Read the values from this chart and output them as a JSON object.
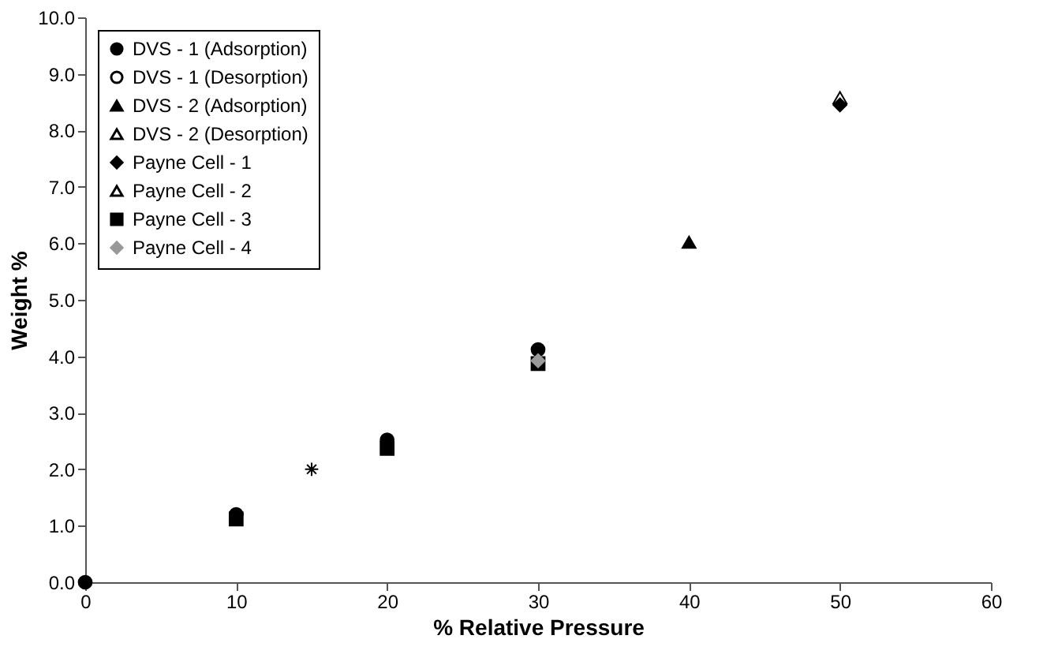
{
  "chart_data": {
    "type": "scatter",
    "xlabel": "% Relative Pressure",
    "ylabel": "Weight %",
    "xlim": [
      0,
      60
    ],
    "xticks": [
      0,
      10,
      20,
      30,
      40,
      50,
      60
    ],
    "ylim": [
      0,
      10
    ],
    "yticks": [
      {
        "value": 0,
        "label": "0.0"
      },
      {
        "value": 1,
        "label": "1.0"
      },
      {
        "value": 2,
        "label": "2.0"
      },
      {
        "value": 3,
        "label": "3.0"
      },
      {
        "value": 4,
        "label": "4.0"
      },
      {
        "value": 5,
        "label": "5.0"
      },
      {
        "value": 6,
        "label": "6.0"
      },
      {
        "value": 7,
        "label": "7.0"
      },
      {
        "value": 8,
        "label": "8.0"
      },
      {
        "value": 9,
        "label": "9.0"
      },
      {
        "value": 10,
        "label": "10.0"
      }
    ],
    "grid": false,
    "legend": "top left",
    "series": [
      {
        "name": "DVS - 1 (Adsorption)",
        "color": "#000000",
        "marker": "circle",
        "x": [
          0,
          10,
          20,
          30
        ],
        "values": [
          0,
          1.2,
          2.52,
          4.12
        ]
      },
      {
        "name": "DVS - 1 (Desorption)",
        "color": "#ffffff",
        "marker": "circle"
      },
      {
        "name": "DVS - 2 (Adsorption)",
        "color": "#000000",
        "marker": "triangle",
        "x": [
          40
        ],
        "values": [
          6.02
        ]
      },
      {
        "name": "DVS - 2 (Desorption)",
        "color": "#ffffff",
        "marker": "triangle",
        "x": [
          50
        ],
        "values": [
          8.58
        ]
      },
      {
        "name": "Payne Cell - 1",
        "color": "#000000",
        "marker": "diamond",
        "x": [
          50
        ],
        "values": [
          8.45
        ]
      },
      {
        "name": "Payne Cell - 2",
        "color": "#ffffff",
        "marker": "triangle"
      },
      {
        "name": "Payne Cell - 3",
        "color": "#000000",
        "marker": "square",
        "x": [
          10,
          20,
          30
        ],
        "values": [
          1.12,
          2.37,
          3.87
        ]
      },
      {
        "name": "Payne Cell - 4",
        "color": "#999999",
        "marker": "diamond",
        "x": [
          30
        ],
        "values": [
          3.92
        ]
      },
      {
        "color": "#000000",
        "marker": "cross",
        "x": [
          15
        ],
        "values": [
          2.0
        ]
      }
    ]
  }
}
